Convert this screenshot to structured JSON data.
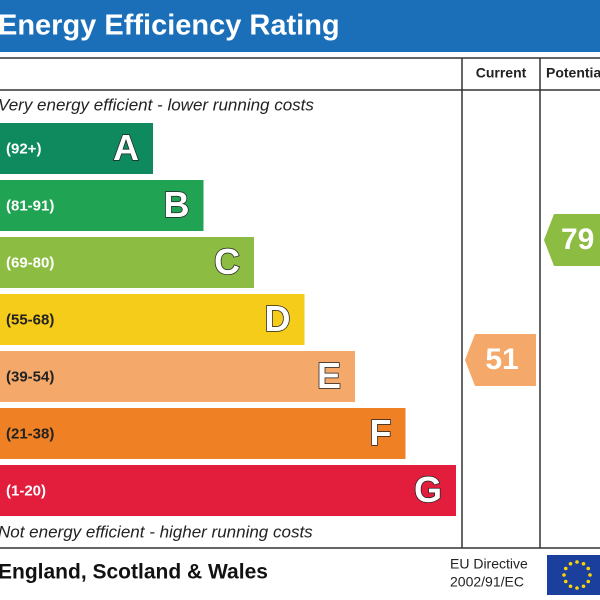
{
  "title": "Energy Efficiency Rating",
  "columns": [
    "Current",
    "Potential"
  ],
  "top_note": "Very energy efficient - lower running costs",
  "bottom_note": "Not energy efficient - higher running costs",
  "bands": [
    {
      "range": "(92+)",
      "letter": "A",
      "color": "#0f8a5f"
    },
    {
      "range": "(81-91)",
      "letter": "B",
      "color": "#20a352"
    },
    {
      "range": "(69-80)",
      "letter": "C",
      "color": "#8cbc42"
    },
    {
      "range": "(55-68)",
      "letter": "D",
      "color": "#f5cc1a"
    },
    {
      "range": "(39-54)",
      "letter": "E",
      "color": "#f4a96a"
    },
    {
      "range": "(21-38)",
      "letter": "F",
      "color": "#ef8024"
    },
    {
      "range": "(1-20)",
      "letter": "G",
      "color": "#e31d3c"
    }
  ],
  "current": 51,
  "potential": 79,
  "footer": {
    "region": "England, Scotland & Wales",
    "directive": [
      "EU Directive",
      "2002/91/EC"
    ]
  }
}
